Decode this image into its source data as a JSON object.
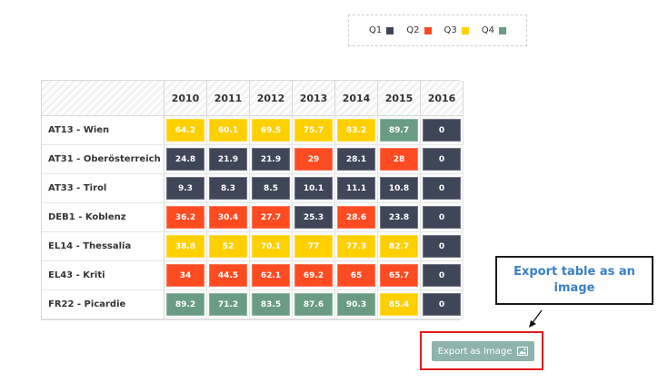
{
  "legend": {
    "items": [
      {
        "label": "Q1",
        "color": "#3f4658"
      },
      {
        "label": "Q2",
        "color": "#ff4b22"
      },
      {
        "label": "Q3",
        "color": "#ffd000"
      },
      {
        "label": "Q4",
        "color": "#6a9c84"
      }
    ]
  },
  "table": {
    "years": [
      "2010",
      "2011",
      "2012",
      "2013",
      "2014",
      "2015",
      "2016"
    ],
    "rows": [
      {
        "label": "AT13 - Wien",
        "cells": [
          {
            "value": "64.2",
            "q": "Q3"
          },
          {
            "value": "60.1",
            "q": "Q3"
          },
          {
            "value": "69.5",
            "q": "Q3"
          },
          {
            "value": "75.7",
            "q": "Q3"
          },
          {
            "value": "83.2",
            "q": "Q3"
          },
          {
            "value": "89.7",
            "q": "Q4"
          },
          {
            "value": "0",
            "q": "Q1"
          }
        ]
      },
      {
        "label": "AT31 - Oberösterreich",
        "cells": [
          {
            "value": "24.8",
            "q": "Q1"
          },
          {
            "value": "21.9",
            "q": "Q1"
          },
          {
            "value": "21.9",
            "q": "Q1"
          },
          {
            "value": "29",
            "q": "Q2"
          },
          {
            "value": "28.1",
            "q": "Q1"
          },
          {
            "value": "28",
            "q": "Q2"
          },
          {
            "value": "0",
            "q": "Q1"
          }
        ]
      },
      {
        "label": "AT33 - Tirol",
        "cells": [
          {
            "value": "9.3",
            "q": "Q1"
          },
          {
            "value": "8.3",
            "q": "Q1"
          },
          {
            "value": "8.5",
            "q": "Q1"
          },
          {
            "value": "10.1",
            "q": "Q1"
          },
          {
            "value": "11.1",
            "q": "Q1"
          },
          {
            "value": "10.8",
            "q": "Q1"
          },
          {
            "value": "0",
            "q": "Q1"
          }
        ]
      },
      {
        "label": "DEB1 - Koblenz",
        "cells": [
          {
            "value": "36.2",
            "q": "Q2"
          },
          {
            "value": "30.4",
            "q": "Q2"
          },
          {
            "value": "27.7",
            "q": "Q2"
          },
          {
            "value": "25.3",
            "q": "Q1"
          },
          {
            "value": "28.6",
            "q": "Q2"
          },
          {
            "value": "23.8",
            "q": "Q1"
          },
          {
            "value": "0",
            "q": "Q1"
          }
        ]
      },
      {
        "label": "EL14 - Thessalia",
        "cells": [
          {
            "value": "38.8",
            "q": "Q3"
          },
          {
            "value": "52",
            "q": "Q3"
          },
          {
            "value": "70.1",
            "q": "Q3"
          },
          {
            "value": "77",
            "q": "Q3"
          },
          {
            "value": "77.3",
            "q": "Q3"
          },
          {
            "value": "82.7",
            "q": "Q3"
          },
          {
            "value": "0",
            "q": "Q1"
          }
        ]
      },
      {
        "label": "EL43 - Kriti",
        "cells": [
          {
            "value": "34",
            "q": "Q2"
          },
          {
            "value": "44.5",
            "q": "Q2"
          },
          {
            "value": "62.1",
            "q": "Q2"
          },
          {
            "value": "69.2",
            "q": "Q2"
          },
          {
            "value": "65",
            "q": "Q2"
          },
          {
            "value": "65.7",
            "q": "Q2"
          },
          {
            "value": "0",
            "q": "Q1"
          }
        ]
      },
      {
        "label": "FR22 - Picardie",
        "cells": [
          {
            "value": "89.2",
            "q": "Q4"
          },
          {
            "value": "71.2",
            "q": "Q4"
          },
          {
            "value": "83.5",
            "q": "Q4"
          },
          {
            "value": "87.6",
            "q": "Q4"
          },
          {
            "value": "90.3",
            "q": "Q4"
          },
          {
            "value": "85.4",
            "q": "Q3"
          },
          {
            "value": "0",
            "q": "Q1"
          }
        ]
      }
    ]
  },
  "callout": {
    "text": "Export table as an image"
  },
  "export": {
    "label": "Export as Image",
    "icon": "image-icon",
    "color": "#8fb3ae",
    "highlight_color": "#e21a1a"
  }
}
